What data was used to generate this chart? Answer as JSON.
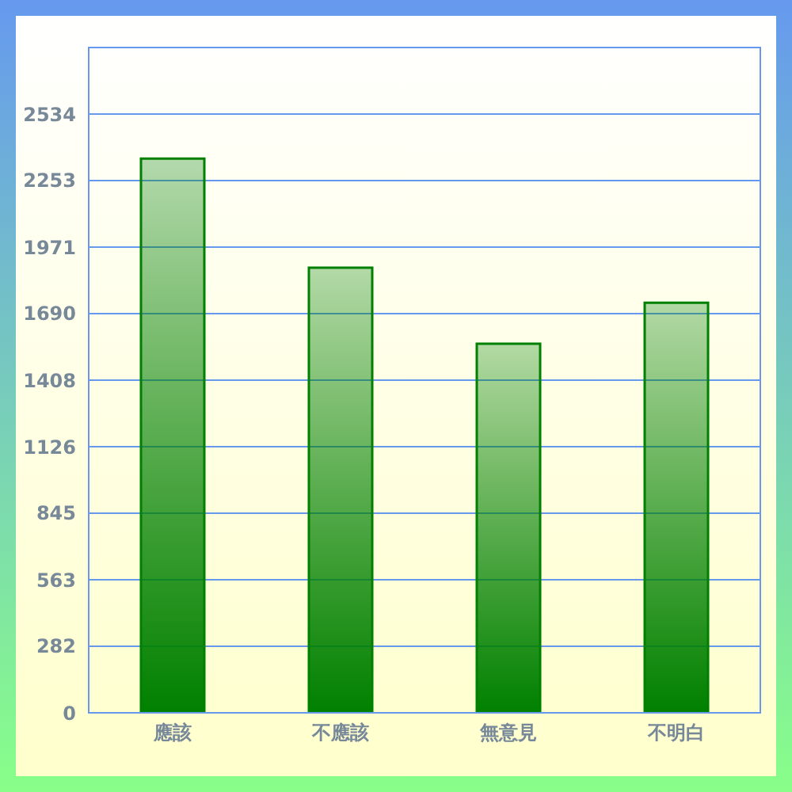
{
  "chart_data": {
    "type": "bar",
    "categories": [
      "應該",
      "不應該",
      "無意見",
      "不明白"
    ],
    "values": [
      2346,
      1884,
      1562,
      1736
    ],
    "color": "#008000",
    "ylim": [
      0,
      2816
    ],
    "yticks": [
      0,
      282,
      563,
      845,
      1126,
      1408,
      1690,
      1971,
      2253,
      2534
    ],
    "grid": "y"
  }
}
